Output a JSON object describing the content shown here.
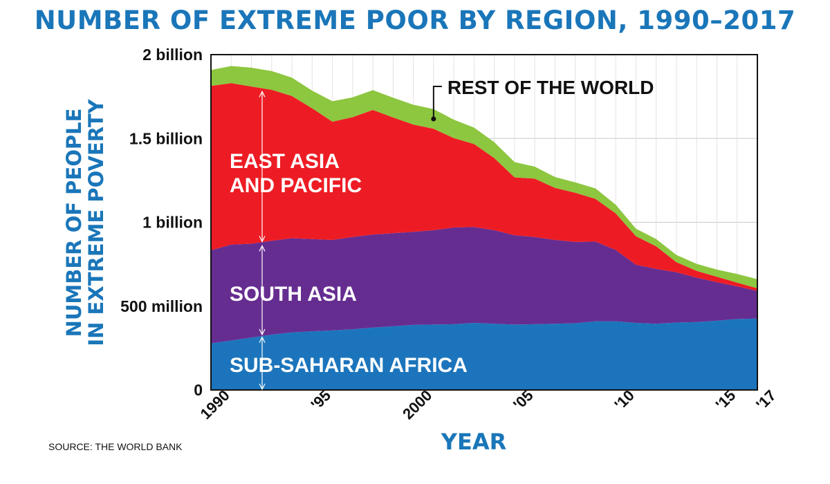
{
  "header": {
    "title": "NUMBER OF EXTREME POOR BY REGION, 1990–2017",
    "ylabel_line1": "NUMBER OF PEOPLE",
    "ylabel_line2": "IN EXTREME POVERTY",
    "xlabel": "YEAR",
    "source": "SOURCE: THE WORLD BANK"
  },
  "chart_data": {
    "type": "area",
    "stacked": true,
    "title": "NUMBER OF EXTREME POOR BY REGION, 1990–2017",
    "xlabel": "YEAR",
    "ylabel": "NUMBER OF PEOPLE IN EXTREME POVERTY",
    "units": "millions",
    "xlim": [
      1990,
      2017
    ],
    "ylim": [
      0,
      2000
    ],
    "grid": true,
    "x": [
      1990,
      1991,
      1992,
      1993,
      1994,
      1995,
      1996,
      1997,
      1998,
      1999,
      2000,
      2001,
      2002,
      2003,
      2004,
      2005,
      2006,
      2007,
      2008,
      2009,
      2010,
      2011,
      2012,
      2013,
      2014,
      2015,
      2016,
      2017
    ],
    "series": [
      {
        "name": "SUB-SAHARAN AFRICA",
        "color": "#1c75bc",
        "values": [
          278,
          295,
          312,
          330,
          343,
          350,
          355,
          362,
          372,
          380,
          388,
          390,
          392,
          400,
          395,
          390,
          392,
          395,
          398,
          410,
          410,
          400,
          395,
          402,
          405,
          413,
          423,
          426
        ]
      },
      {
        "name": "SOUTH ASIA",
        "color": "#662d91",
        "values": [
          555,
          572,
          560,
          560,
          562,
          550,
          540,
          550,
          555,
          555,
          555,
          563,
          577,
          572,
          558,
          533,
          520,
          500,
          485,
          475,
          425,
          347,
          327,
          300,
          265,
          230,
          195,
          165
        ]
      },
      {
        "name": "EAST ASIA AND PACIFIC",
        "color": "#ed1c24",
        "values": [
          980,
          963,
          938,
          900,
          848,
          780,
          705,
          715,
          743,
          690,
          640,
          605,
          533,
          495,
          430,
          345,
          348,
          310,
          293,
          255,
          218,
          170,
          135,
          60,
          40,
          32,
          22,
          15
        ]
      },
      {
        "name": "REST OF THE WORLD",
        "color": "#8dc63f",
        "values": [
          95,
          102,
          112,
          112,
          110,
          105,
          122,
          118,
          118,
          118,
          118,
          117,
          110,
          98,
          95,
          91,
          72,
          65,
          62,
          62,
          52,
          45,
          43,
          43,
          42,
          43,
          52,
          55
        ]
      }
    ],
    "xticks": [
      {
        "value": 1990,
        "label": "1990"
      },
      {
        "value": 1995,
        "label": "'95"
      },
      {
        "value": 2000,
        "label": "2000"
      },
      {
        "value": 2005,
        "label": "'05"
      },
      {
        "value": 2010,
        "label": "'10"
      },
      {
        "value": 2015,
        "label": "'15"
      },
      {
        "value": 2017,
        "label": "'17"
      }
    ],
    "yticks": [
      {
        "value": 0,
        "label": "0"
      },
      {
        "value": 500,
        "label": "500 million"
      },
      {
        "value": 1000,
        "label": "1 billion"
      },
      {
        "value": 1500,
        "label": "1.5 billion"
      },
      {
        "value": 2000,
        "label": "2 billion"
      }
    ],
    "annotations": {
      "east_asia_line1": "EAST ASIA",
      "east_asia_line2": "AND PACIFIC",
      "south_asia": "SOUTH ASIA",
      "africa": "SUB-SAHARAN AFRICA",
      "rest": "REST OF THE WORLD",
      "rest_pointer_year": 2001
    }
  }
}
